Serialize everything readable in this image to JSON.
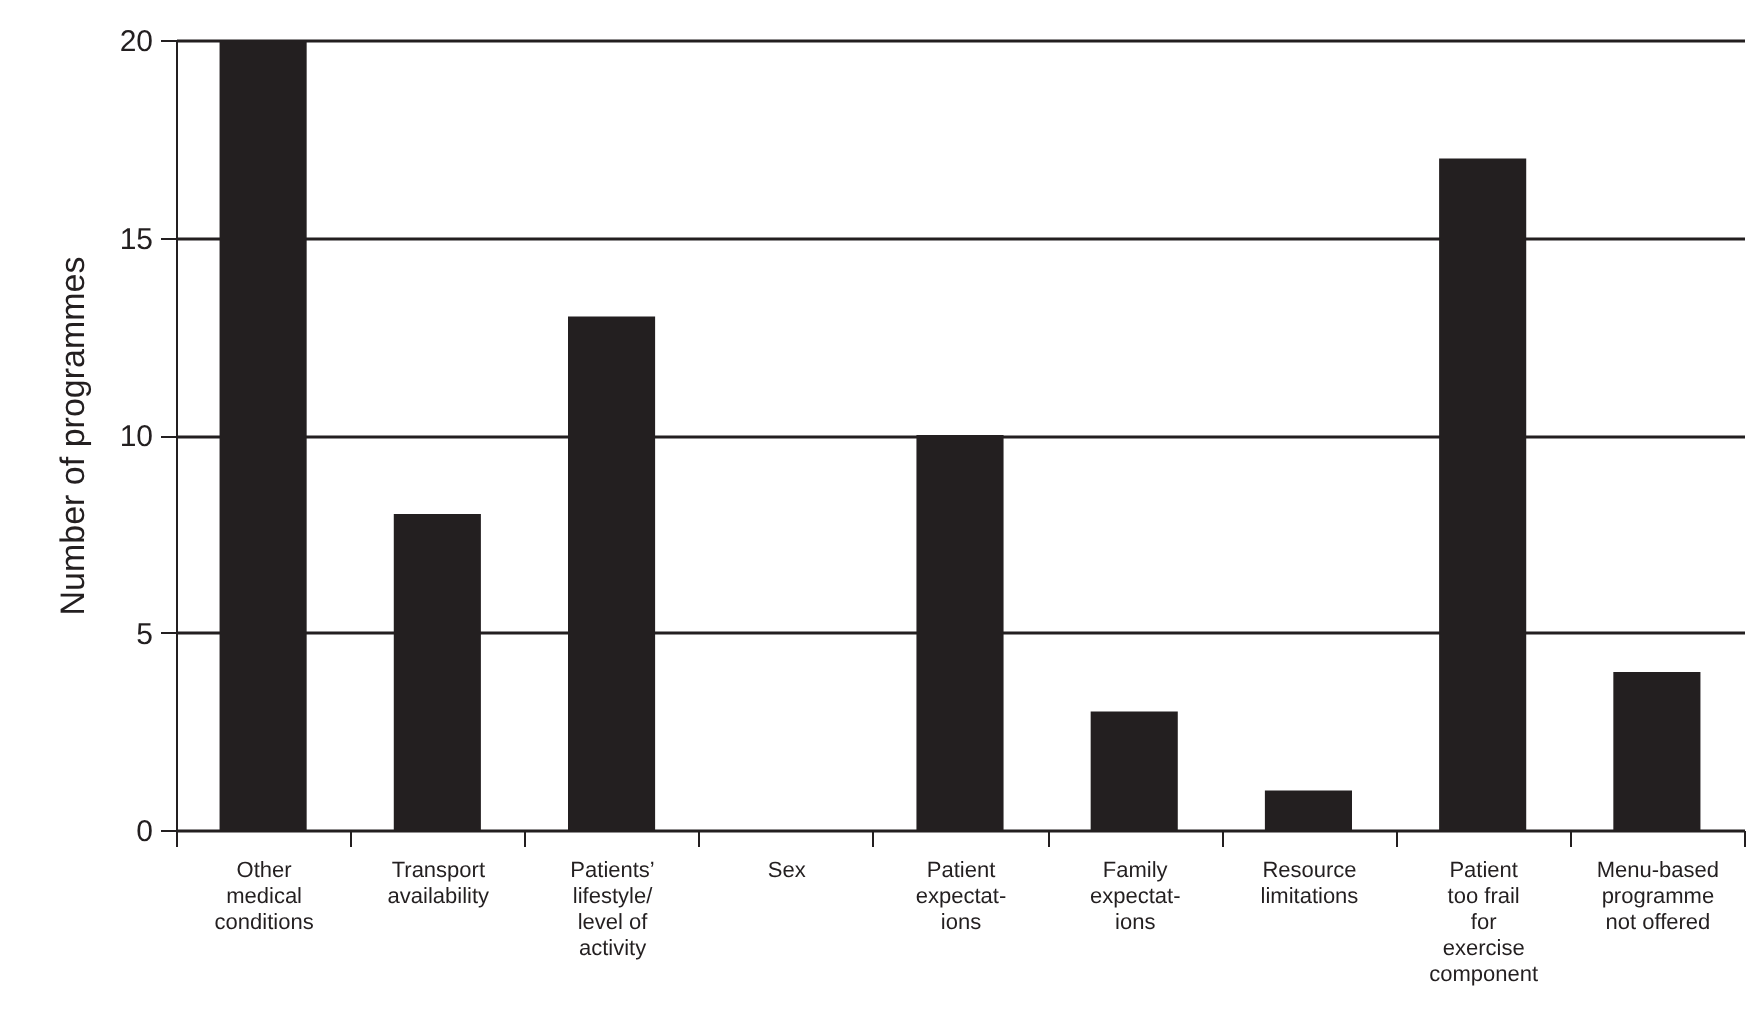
{
  "chart_data": {
    "type": "bar",
    "categories": [
      "Other\nmedical\nconditions",
      "Transport\navailability",
      "Patients’\nlifestyle/\nlevel of\nactivity",
      "Sex",
      "Patient\nexpectat-\nions",
      "Family\nexpectat-\nions",
      "Resource\nlimitations",
      "Patient\ntoo frail\nfor\nexercise\ncomponent",
      "Menu-based\nprogramme\nnot offered"
    ],
    "values": [
      20,
      8,
      13,
      0,
      10,
      3,
      1,
      17,
      4
    ],
    "color": "#231f20",
    "ylabel": "Number of programmes",
    "ylim": [
      0,
      20
    ],
    "yticks": [
      0,
      5,
      10,
      15,
      20
    ],
    "grid": "y"
  }
}
